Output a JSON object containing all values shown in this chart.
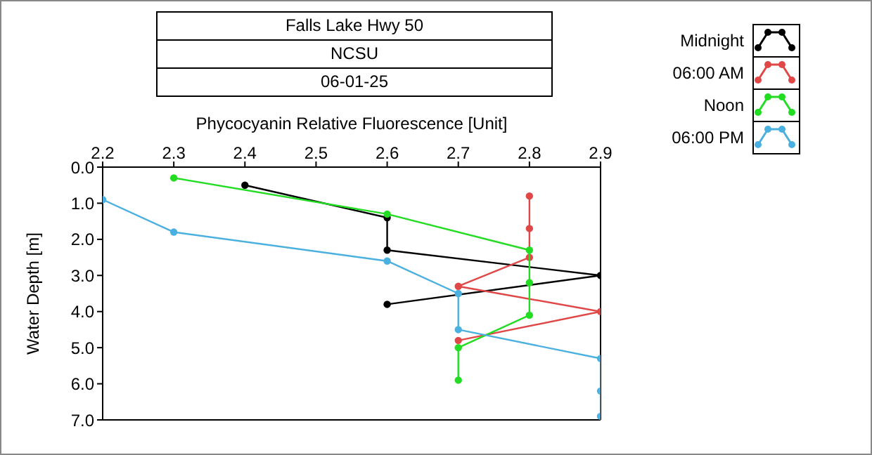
{
  "chart_data": {
    "type": "line",
    "title": "Falls Lake Hwy 50",
    "subtitle": "NCSU",
    "annotations": [
      "06-01-25"
    ],
    "xlabel": "Phycocyanin Relative Fluorescence [Unit]",
    "ylabel": "Water Depth [m]",
    "xlim": [
      2.2,
      2.9
    ],
    "xticks": [
      2.2,
      2.3,
      2.4,
      2.5,
      2.6,
      2.7,
      2.8,
      2.9
    ],
    "ylim": [
      7,
      0
    ],
    "yticks": [
      {
        "value": 0,
        "label": "0.0"
      },
      {
        "value": 1,
        "label": "1.0"
      },
      {
        "value": 2,
        "label": "2.0"
      },
      {
        "value": 3,
        "label": "3.0"
      },
      {
        "value": 4,
        "label": "4.0"
      },
      {
        "value": 5,
        "label": "5.0"
      },
      {
        "value": 6,
        "label": "6.0"
      },
      {
        "value": 7,
        "label": "7.0"
      }
    ],
    "legend": "top right",
    "marker": "circle",
    "line_style": "solid",
    "series": [
      {
        "name": "Midnight",
        "color": "#000000",
        "x": [
          2.4,
          2.6,
          2.6,
          2.9,
          2.6
        ],
        "values": [
          0.5,
          1.4,
          2.3,
          3.0,
          3.8
        ]
      },
      {
        "name": "06:00 AM",
        "color": "#e04848",
        "x": [
          2.8,
          2.8,
          2.8,
          2.7,
          2.9,
          2.7
        ],
        "values": [
          0.8,
          1.7,
          2.5,
          3.3,
          4.0,
          4.8
        ]
      },
      {
        "name": "Noon",
        "color": "#22dd22",
        "x": [
          2.3,
          2.6,
          2.8,
          2.8,
          2.8,
          2.7,
          2.7
        ],
        "values": [
          0.3,
          1.3,
          2.3,
          3.2,
          4.1,
          5.0,
          5.9
        ]
      },
      {
        "name": "06:00 PM",
        "color": "#4ab0e0",
        "x": [
          2.2,
          2.3,
          2.6,
          2.7,
          2.7,
          2.9,
          2.9,
          2.9
        ],
        "values": [
          0.9,
          1.8,
          2.6,
          3.5,
          4.5,
          5.3,
          6.2,
          6.9
        ]
      }
    ]
  }
}
